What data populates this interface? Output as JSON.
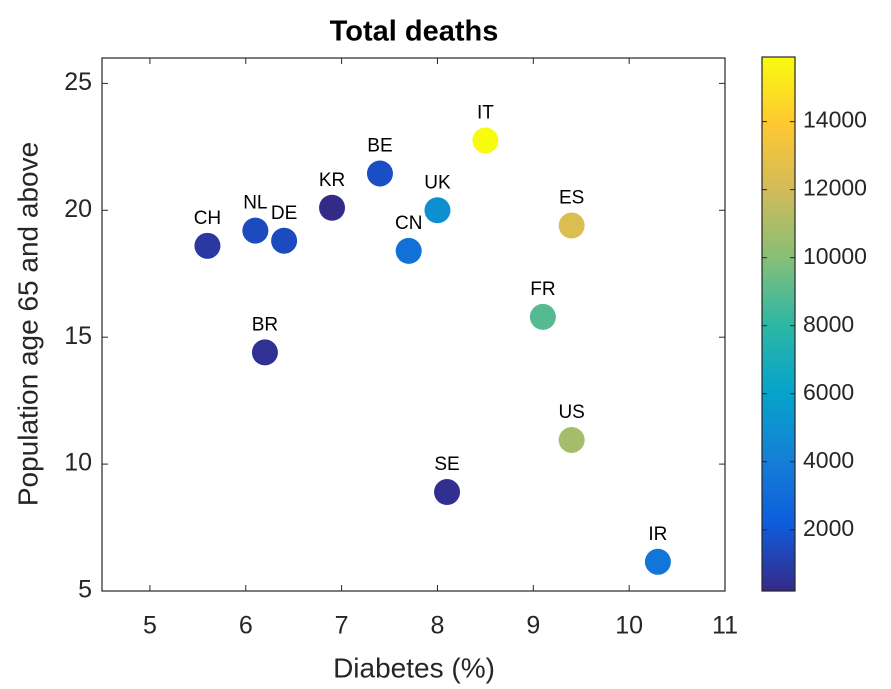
{
  "chart_data": {
    "type": "scatter",
    "title": "Total deaths",
    "x_label": "Diabetes (%)",
    "y_label": "Population age 65 and above",
    "labels": [
      "CH",
      "NL",
      "DE",
      "KR",
      "BE",
      "IT",
      "UK",
      "CN",
      "ES",
      "FR",
      "BR",
      "US",
      "SE",
      "IR"
    ],
    "x": [
      5.6,
      6.1,
      6.4,
      6.9,
      7.4,
      8.5,
      8.0,
      7.7,
      9.4,
      9.1,
      6.2,
      9.4,
      8.1,
      10.3
    ],
    "values": [
      18.6,
      19.2,
      18.8,
      20.1,
      21.45,
      22.75,
      20.0,
      18.4,
      19.4,
      15.8,
      14.4,
      10.95,
      8.9,
      6.15
    ],
    "color_values": [
      800,
      1500,
      1500,
      250,
      1600,
      15900,
      4900,
      3300,
      12400,
      8900,
      500,
      10800,
      400,
      3500
    ],
    "colormap": [
      "#352a87",
      "#0f5cdd",
      "#1481d6",
      "#06a4ca",
      "#2eb7a4",
      "#87bf77",
      "#d1bb59",
      "#fec832",
      "#f9fb0e"
    ],
    "xlim": [
      4.5,
      11
    ],
    "xticks": [
      5,
      6,
      7,
      8,
      9,
      10,
      11
    ],
    "ylim": [
      5,
      26
    ],
    "yticks": [
      5,
      10,
      15,
      20,
      25
    ],
    "clim": [
      200,
      15900
    ],
    "cticks": [
      2000,
      4000,
      6000,
      8000,
      10000,
      12000,
      14000
    ]
  }
}
